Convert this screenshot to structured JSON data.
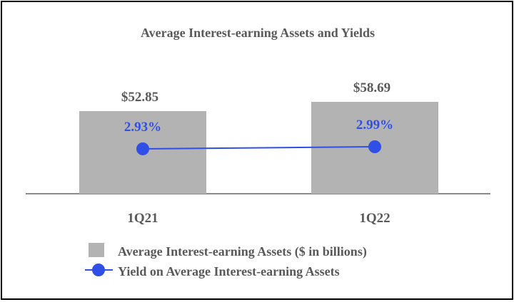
{
  "chart_data": {
    "type": "bar",
    "title": "Average Interest-earning Assets and Yields",
    "categories": [
      "1Q21",
      "1Q22"
    ],
    "series": [
      {
        "name": "Average Interest-earning Assets ($ in billions)",
        "type": "bar",
        "values": [
          52.85,
          58.69
        ],
        "labels": [
          "$52.85",
          "$58.69"
        ],
        "color": "#b3b3b3"
      },
      {
        "name": "Yield on Average Interest-earning Assets",
        "type": "line",
        "values": [
          2.93,
          2.99
        ],
        "labels": [
          "2.93%",
          "2.99%"
        ],
        "color": "#2f4fe6"
      }
    ],
    "legend_position": "bottom",
    "grid": false,
    "colors": {
      "text": "#595959",
      "axis": "#8c8c8c",
      "bar": "#b3b3b3",
      "line": "#2f4fe6"
    }
  }
}
